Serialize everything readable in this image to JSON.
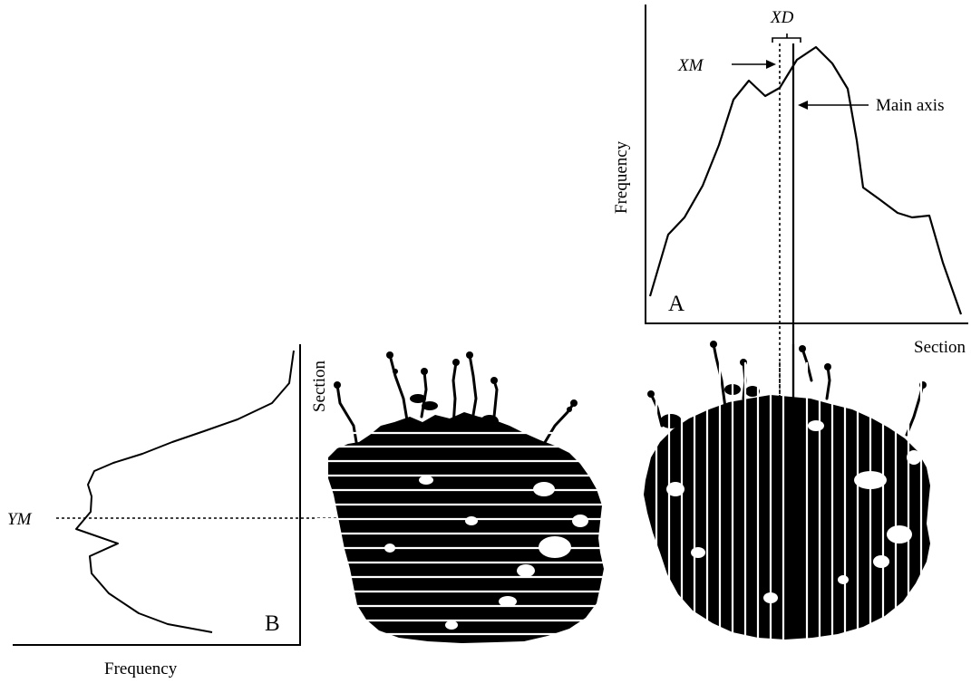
{
  "panel_a": {
    "label": "A",
    "x_axis_label": "Section",
    "y_axis_label": "Frequency",
    "xd_label": "XD",
    "xm_label": "XM",
    "main_axis_label": "Main axis"
  },
  "panel_b": {
    "label": "B",
    "x_axis_label": "Frequency",
    "y_axis_label": "Section",
    "ym_label": "YM"
  },
  "colors": {
    "ink": "#000000",
    "background": "#ffffff"
  }
}
